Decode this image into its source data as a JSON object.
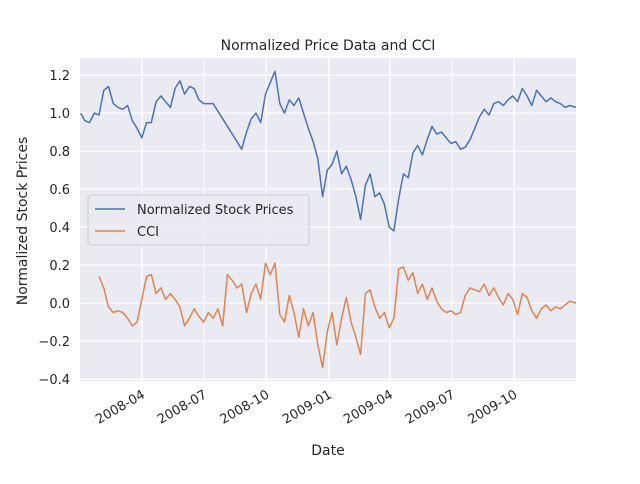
{
  "chart_data": {
    "type": "line",
    "title": "Normalized Price Data and CCI",
    "xlabel": "Date",
    "ylabel": "Normalized Stock Prices",
    "xlim": [
      "2008-01-01",
      "2009-12-31"
    ],
    "ylim": [
      -0.41,
      1.29
    ],
    "x_ticks": [
      "2008-04-01",
      "2008-07-01",
      "2008-10-01",
      "2009-01-01",
      "2009-04-01",
      "2009-07-01",
      "2009-10-01"
    ],
    "x_tick_labels": [
      "2008-04",
      "2008-07",
      "2008-10",
      "2009-01",
      "2009-04",
      "2009-07",
      "2009-10"
    ],
    "y_ticks": [
      -0.4,
      -0.2,
      0.0,
      0.2,
      0.4,
      0.6,
      0.8,
      1.0,
      1.2
    ],
    "y_tick_labels": [
      "−0.4",
      "−0.2",
      "0.0",
      "0.2",
      "0.4",
      "0.6",
      "0.8",
      "1.0",
      "1.2"
    ],
    "grid": true,
    "legend_position": "center-left",
    "series": [
      {
        "name": "Normalized Stock Prices",
        "color": "#4c72b0",
        "points": [
          [
            "2008-01-02",
            1.0
          ],
          [
            "2008-01-08",
            0.96
          ],
          [
            "2008-01-15",
            0.95
          ],
          [
            "2008-01-22",
            1.0
          ],
          [
            "2008-01-29",
            0.99
          ],
          [
            "2008-02-05",
            1.12
          ],
          [
            "2008-02-12",
            1.14
          ],
          [
            "2008-02-19",
            1.05
          ],
          [
            "2008-02-26",
            1.03
          ],
          [
            "2008-03-04",
            1.02
          ],
          [
            "2008-03-11",
            1.04
          ],
          [
            "2008-03-18",
            0.96
          ],
          [
            "2008-03-25",
            0.92
          ],
          [
            "2008-04-01",
            0.87
          ],
          [
            "2008-04-08",
            0.95
          ],
          [
            "2008-04-15",
            0.95
          ],
          [
            "2008-04-22",
            1.06
          ],
          [
            "2008-04-29",
            1.09
          ],
          [
            "2008-05-06",
            1.06
          ],
          [
            "2008-05-13",
            1.03
          ],
          [
            "2008-05-20",
            1.13
          ],
          [
            "2008-05-27",
            1.17
          ],
          [
            "2008-06-03",
            1.1
          ],
          [
            "2008-06-10",
            1.14
          ],
          [
            "2008-06-17",
            1.13
          ],
          [
            "2008-06-24",
            1.07
          ],
          [
            "2008-07-01",
            1.05
          ],
          [
            "2008-07-08",
            1.05
          ],
          [
            "2008-07-15",
            1.05
          ],
          [
            "2008-07-22",
            1.01
          ],
          [
            "2008-07-29",
            0.97
          ],
          [
            "2008-08-05",
            0.93
          ],
          [
            "2008-08-12",
            0.89
          ],
          [
            "2008-08-19",
            0.85
          ],
          [
            "2008-08-26",
            0.81
          ],
          [
            "2008-09-02",
            0.9
          ],
          [
            "2008-09-09",
            0.97
          ],
          [
            "2008-09-16",
            1.0
          ],
          [
            "2008-09-23",
            0.95
          ],
          [
            "2008-09-30",
            1.1
          ],
          [
            "2008-10-07",
            1.16
          ],
          [
            "2008-10-14",
            1.22
          ],
          [
            "2008-10-21",
            1.05
          ],
          [
            "2008-10-28",
            1.0
          ],
          [
            "2008-11-04",
            1.07
          ],
          [
            "2008-11-11",
            1.04
          ],
          [
            "2008-11-18",
            1.08
          ],
          [
            "2008-11-25",
            1.0
          ],
          [
            "2008-12-02",
            0.92
          ],
          [
            "2008-12-09",
            0.85
          ],
          [
            "2008-12-16",
            0.76
          ],
          [
            "2008-12-23",
            0.56
          ],
          [
            "2008-12-30",
            0.7
          ],
          [
            "2009-01-06",
            0.73
          ],
          [
            "2009-01-13",
            0.8
          ],
          [
            "2009-01-20",
            0.68
          ],
          [
            "2009-01-27",
            0.72
          ],
          [
            "2009-02-03",
            0.65
          ],
          [
            "2009-02-10",
            0.56
          ],
          [
            "2009-02-17",
            0.44
          ],
          [
            "2009-02-24",
            0.62
          ],
          [
            "2009-03-03",
            0.68
          ],
          [
            "2009-03-10",
            0.56
          ],
          [
            "2009-03-17",
            0.58
          ],
          [
            "2009-03-24",
            0.52
          ],
          [
            "2009-03-31",
            0.4
          ],
          [
            "2009-04-07",
            0.38
          ],
          [
            "2009-04-14",
            0.55
          ],
          [
            "2009-04-21",
            0.68
          ],
          [
            "2009-04-28",
            0.66
          ],
          [
            "2009-05-05",
            0.79
          ],
          [
            "2009-05-12",
            0.83
          ],
          [
            "2009-05-19",
            0.78
          ],
          [
            "2009-05-26",
            0.86
          ],
          [
            "2009-06-02",
            0.93
          ],
          [
            "2009-06-09",
            0.89
          ],
          [
            "2009-06-16",
            0.9
          ],
          [
            "2009-06-23",
            0.87
          ],
          [
            "2009-06-30",
            0.84
          ],
          [
            "2009-07-07",
            0.85
          ],
          [
            "2009-07-14",
            0.81
          ],
          [
            "2009-07-21",
            0.82
          ],
          [
            "2009-07-28",
            0.86
          ],
          [
            "2009-08-04",
            0.92
          ],
          [
            "2009-08-11",
            0.98
          ],
          [
            "2009-08-18",
            1.02
          ],
          [
            "2009-08-25",
            0.99
          ],
          [
            "2009-09-01",
            1.05
          ],
          [
            "2009-09-08",
            1.06
          ],
          [
            "2009-09-15",
            1.04
          ],
          [
            "2009-09-22",
            1.07
          ],
          [
            "2009-09-29",
            1.09
          ],
          [
            "2009-10-06",
            1.06
          ],
          [
            "2009-10-13",
            1.13
          ],
          [
            "2009-10-20",
            1.09
          ],
          [
            "2009-10-27",
            1.04
          ],
          [
            "2009-11-03",
            1.12
          ],
          [
            "2009-11-10",
            1.09
          ],
          [
            "2009-11-17",
            1.06
          ],
          [
            "2009-11-24",
            1.08
          ],
          [
            "2009-12-01",
            1.06
          ],
          [
            "2009-12-08",
            1.05
          ],
          [
            "2009-12-15",
            1.03
          ],
          [
            "2009-12-22",
            1.04
          ],
          [
            "2009-12-31",
            1.03
          ]
        ]
      },
      {
        "name": "CCI",
        "color": "#dd8452",
        "points": [
          [
            "2008-01-29",
            0.14
          ],
          [
            "2008-02-05",
            0.08
          ],
          [
            "2008-02-12",
            -0.02
          ],
          [
            "2008-02-19",
            -0.05
          ],
          [
            "2008-02-26",
            -0.04
          ],
          [
            "2008-03-04",
            -0.05
          ],
          [
            "2008-03-11",
            -0.08
          ],
          [
            "2008-03-18",
            -0.12
          ],
          [
            "2008-03-25",
            -0.1
          ],
          [
            "2008-04-01",
            0.02
          ],
          [
            "2008-04-08",
            0.14
          ],
          [
            "2008-04-15",
            0.15
          ],
          [
            "2008-04-22",
            0.05
          ],
          [
            "2008-04-29",
            0.08
          ],
          [
            "2008-05-06",
            0.02
          ],
          [
            "2008-05-13",
            0.05
          ],
          [
            "2008-05-20",
            0.02
          ],
          [
            "2008-05-27",
            -0.02
          ],
          [
            "2008-06-03",
            -0.12
          ],
          [
            "2008-06-10",
            -0.08
          ],
          [
            "2008-06-17",
            -0.03
          ],
          [
            "2008-06-24",
            -0.07
          ],
          [
            "2008-07-01",
            -0.1
          ],
          [
            "2008-07-08",
            -0.05
          ],
          [
            "2008-07-15",
            -0.08
          ],
          [
            "2008-07-22",
            -0.03
          ],
          [
            "2008-07-29",
            -0.12
          ],
          [
            "2008-08-05",
            0.15
          ],
          [
            "2008-08-12",
            0.12
          ],
          [
            "2008-08-19",
            0.08
          ],
          [
            "2008-08-26",
            0.1
          ],
          [
            "2008-09-02",
            -0.05
          ],
          [
            "2008-09-09",
            0.05
          ],
          [
            "2008-09-16",
            0.1
          ],
          [
            "2008-09-23",
            0.02
          ],
          [
            "2008-09-30",
            0.21
          ],
          [
            "2008-10-07",
            0.15
          ],
          [
            "2008-10-14",
            0.21
          ],
          [
            "2008-10-21",
            -0.06
          ],
          [
            "2008-10-28",
            -0.1
          ],
          [
            "2008-11-04",
            0.04
          ],
          [
            "2008-11-11",
            -0.05
          ],
          [
            "2008-11-18",
            -0.18
          ],
          [
            "2008-11-25",
            -0.03
          ],
          [
            "2008-12-02",
            -0.12
          ],
          [
            "2008-12-09",
            -0.05
          ],
          [
            "2008-12-16",
            -0.22
          ],
          [
            "2008-12-23",
            -0.34
          ],
          [
            "2008-12-30",
            -0.15
          ],
          [
            "2009-01-06",
            -0.05
          ],
          [
            "2009-01-13",
            -0.22
          ],
          [
            "2009-01-20",
            -0.08
          ],
          [
            "2009-01-27",
            0.03
          ],
          [
            "2009-02-03",
            -0.1
          ],
          [
            "2009-02-10",
            -0.18
          ],
          [
            "2009-02-17",
            -0.27
          ],
          [
            "2009-02-24",
            0.05
          ],
          [
            "2009-03-03",
            0.07
          ],
          [
            "2009-03-10",
            -0.02
          ],
          [
            "2009-03-17",
            -0.08
          ],
          [
            "2009-03-24",
            -0.05
          ],
          [
            "2009-03-31",
            -0.13
          ],
          [
            "2009-04-07",
            -0.08
          ],
          [
            "2009-04-14",
            0.18
          ],
          [
            "2009-04-21",
            0.19
          ],
          [
            "2009-04-28",
            0.12
          ],
          [
            "2009-05-05",
            0.16
          ],
          [
            "2009-05-12",
            0.05
          ],
          [
            "2009-05-19",
            0.1
          ],
          [
            "2009-05-26",
            0.02
          ],
          [
            "2009-06-02",
            0.08
          ],
          [
            "2009-06-09",
            0.01
          ],
          [
            "2009-06-16",
            -0.03
          ],
          [
            "2009-06-23",
            -0.05
          ],
          [
            "2009-06-30",
            -0.04
          ],
          [
            "2009-07-07",
            -0.06
          ],
          [
            "2009-07-14",
            -0.05
          ],
          [
            "2009-07-21",
            0.04
          ],
          [
            "2009-07-28",
            0.08
          ],
          [
            "2009-08-04",
            0.07
          ],
          [
            "2009-08-11",
            0.06
          ],
          [
            "2009-08-18",
            0.1
          ],
          [
            "2009-08-25",
            0.04
          ],
          [
            "2009-09-01",
            0.08
          ],
          [
            "2009-09-08",
            0.03
          ],
          [
            "2009-09-15",
            -0.01
          ],
          [
            "2009-09-22",
            0.05
          ],
          [
            "2009-09-29",
            0.02
          ],
          [
            "2009-10-06",
            -0.06
          ],
          [
            "2009-10-13",
            0.05
          ],
          [
            "2009-10-20",
            0.03
          ],
          [
            "2009-10-27",
            -0.04
          ],
          [
            "2009-11-03",
            -0.08
          ],
          [
            "2009-11-10",
            -0.03
          ],
          [
            "2009-11-17",
            -0.01
          ],
          [
            "2009-11-24",
            -0.04
          ],
          [
            "2009-12-01",
            -0.02
          ],
          [
            "2009-12-08",
            -0.03
          ],
          [
            "2009-12-15",
            -0.01
          ],
          [
            "2009-12-22",
            0.01
          ],
          [
            "2009-12-31",
            0.0
          ]
        ]
      }
    ]
  }
}
